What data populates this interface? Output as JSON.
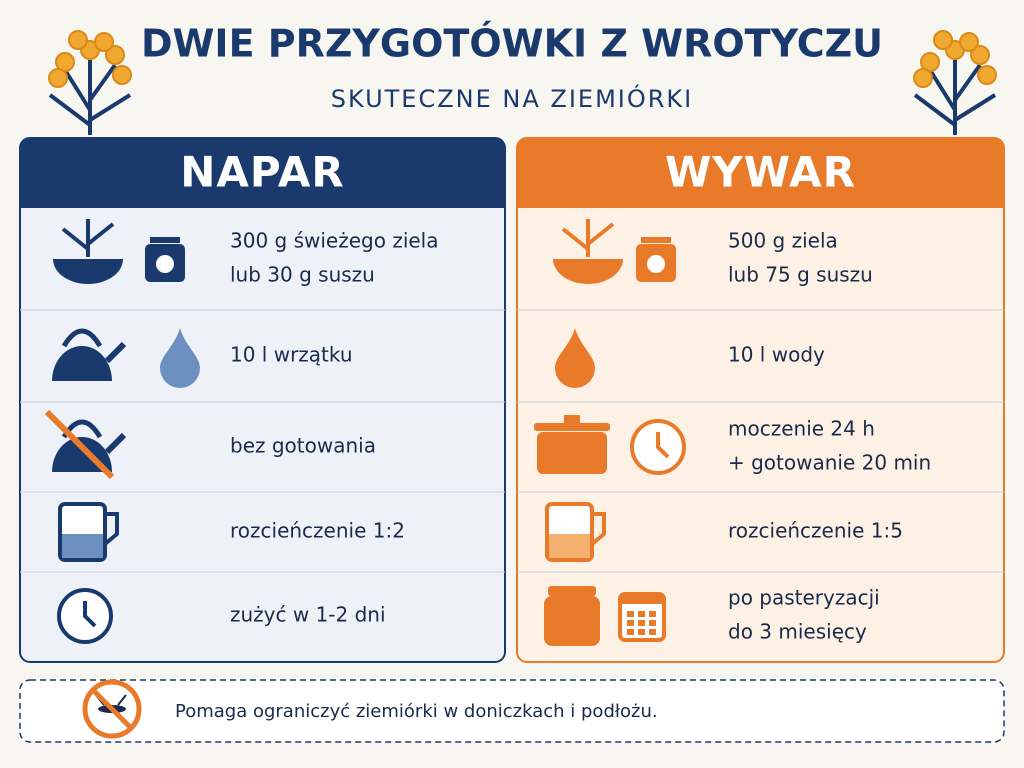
{
  "header": {
    "title": "DWIE PRZYGOTÓWKI Z WROTYCZU",
    "subtitle": "SKUTECZNE NA ZIEMIÓRKI"
  },
  "columns": [
    {
      "title": "NAPAR",
      "rows": [
        {
          "lines": [
            "300 g świeżego ziela",
            "lub 30 g suszu"
          ]
        },
        {
          "lines": [
            "10 l wrzątku"
          ]
        },
        {
          "lines": [
            "bez gotowania"
          ]
        },
        {
          "lines": [
            "rozcieńczenie 1:2"
          ]
        },
        {
          "lines": [
            "zużyć w 1-2 dni"
          ]
        }
      ]
    },
    {
      "title": "WYWAR",
      "rows": [
        {
          "lines": [
            "500 g ziela",
            "lub 75 g suszu"
          ]
        },
        {
          "lines": [
            "10 l wody"
          ]
        },
        {
          "lines": [
            "moczenie 24 h",
            "+ gotowanie 20 min"
          ]
        },
        {
          "lines": [
            "rozcieńczenie 1:5"
          ]
        },
        {
          "lines": [
            "po pasteryzacji",
            "do 3 miesięcy"
          ]
        }
      ]
    }
  ],
  "footer": {
    "text": "Pomaga ograniczyć ziemiórki w doniczkach i podłożu."
  }
}
